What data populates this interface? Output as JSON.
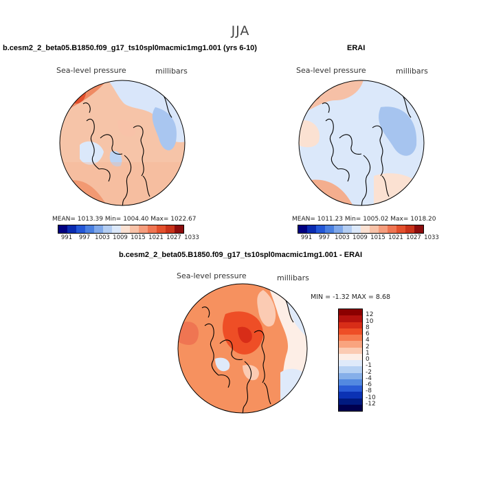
{
  "season": "JJA",
  "chart_data": [
    {
      "type": "heatmap",
      "projection": "north-polar-stereographic",
      "title": "b.cesm2_2_beta05.B1850.f09_g17_ts10spl0macmic1mg1.001 (yrs 6-10)",
      "variable": "Sea-level pressure",
      "units": "millibars",
      "stats": {
        "mean": "1013.39",
        "min": "1004.40",
        "max": "1022.67"
      },
      "stats_text": "MEAN= 1013.39   Min= 1004.40   Max= 1022.67",
      "colorbar_labels": [
        "991",
        "997",
        "1003",
        "1009",
        "1015",
        "1021",
        "1027",
        "1033"
      ],
      "colorbar_colors": [
        "#000080",
        "#0a2bb0",
        "#2457d6",
        "#4a7fe0",
        "#7fa8ea",
        "#b3cdf2",
        "#dbe8fa",
        "#fbe1d2",
        "#f8c2a8",
        "#f59d7d",
        "#ef7552",
        "#e3502d",
        "#c8321a",
        "#8b0c0c"
      ]
    },
    {
      "type": "heatmap",
      "projection": "north-polar-stereographic",
      "title": "ERAI",
      "variable": "Sea-level pressure",
      "units": "millibars",
      "stats": {
        "mean": "1011.23",
        "min": "1005.02",
        "max": "1018.20"
      },
      "stats_text": "MEAN= 1011.23   Min= 1005.02   Max= 1018.20",
      "colorbar_labels": [
        "991",
        "997",
        "1003",
        "1009",
        "1015",
        "1021",
        "1027",
        "1033"
      ],
      "colorbar_colors": [
        "#000080",
        "#0a2bb0",
        "#2457d6",
        "#4a7fe0",
        "#7fa8ea",
        "#b3cdf2",
        "#dbe8fa",
        "#fbe1d2",
        "#f8c2a8",
        "#f59d7d",
        "#ef7552",
        "#e3502d",
        "#c8321a",
        "#8b0c0c"
      ]
    },
    {
      "type": "heatmap",
      "projection": "north-polar-stereographic",
      "title": "b.cesm2_2_beta05.B1850.f09_g17_ts10spl0macmic1mg1.001 - ERAI",
      "variable": "Sea-level pressure",
      "units": "millibars",
      "stats": {
        "min": "-1.32",
        "max": "8.68"
      },
      "stats_text": "MIN =   -1.32 MAX =    8.68",
      "colorbar_labels": [
        "12",
        "10",
        "8",
        "6",
        "4",
        "2",
        "1",
        "0",
        "-1",
        "-2",
        "-4",
        "-6",
        "-8",
        "-10",
        "-12"
      ],
      "colorbar_colors": [
        "#8b0000",
        "#b5120e",
        "#d82d18",
        "#ee4e26",
        "#f67a4e",
        "#f9a47f",
        "#fbcbb3",
        "#fdeee6",
        "#dfeafa",
        "#b6d1f3",
        "#86afe9",
        "#5389e0",
        "#2a5cd6",
        "#0b32b4",
        "#001a80",
        "#00004f"
      ]
    }
  ]
}
